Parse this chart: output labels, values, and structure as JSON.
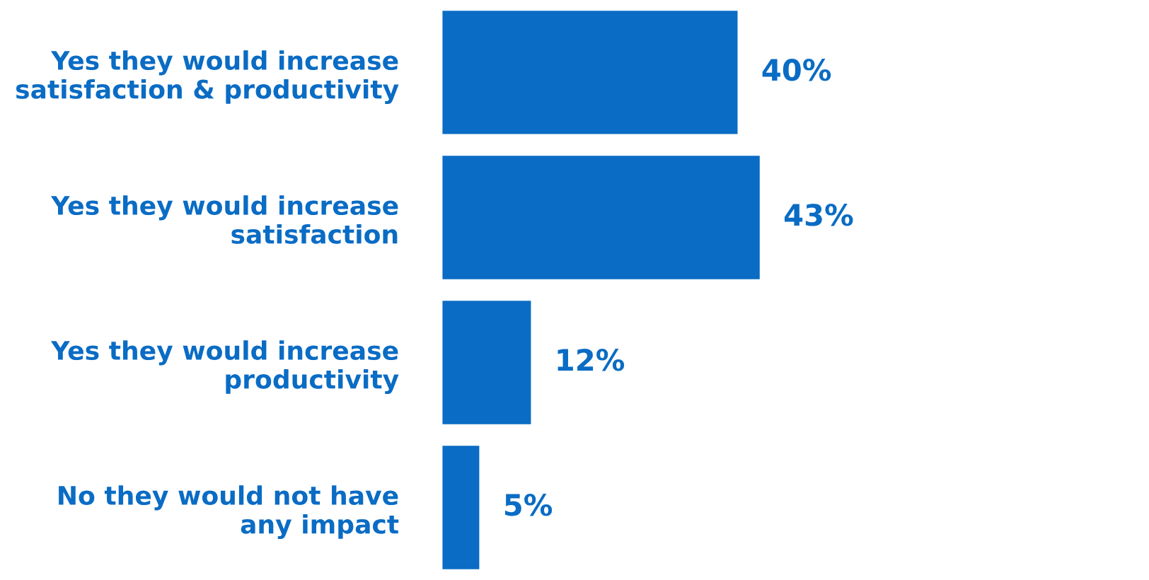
{
  "chart_data": {
    "type": "bar",
    "orientation": "horizontal",
    "categories": [
      "Yes they would increase\nsatisfaction & productivity",
      "Yes they would increase\nsatisfaction",
      "Yes they would increase\nproductivity",
      "No they would not have\nany impact"
    ],
    "values": [
      40,
      43,
      12,
      5
    ],
    "value_labels": [
      "40%",
      "43%",
      "12%",
      "5%"
    ],
    "color": "#0a6cc4",
    "tick_labels": "y",
    "grid": false,
    "legend": false
  }
}
